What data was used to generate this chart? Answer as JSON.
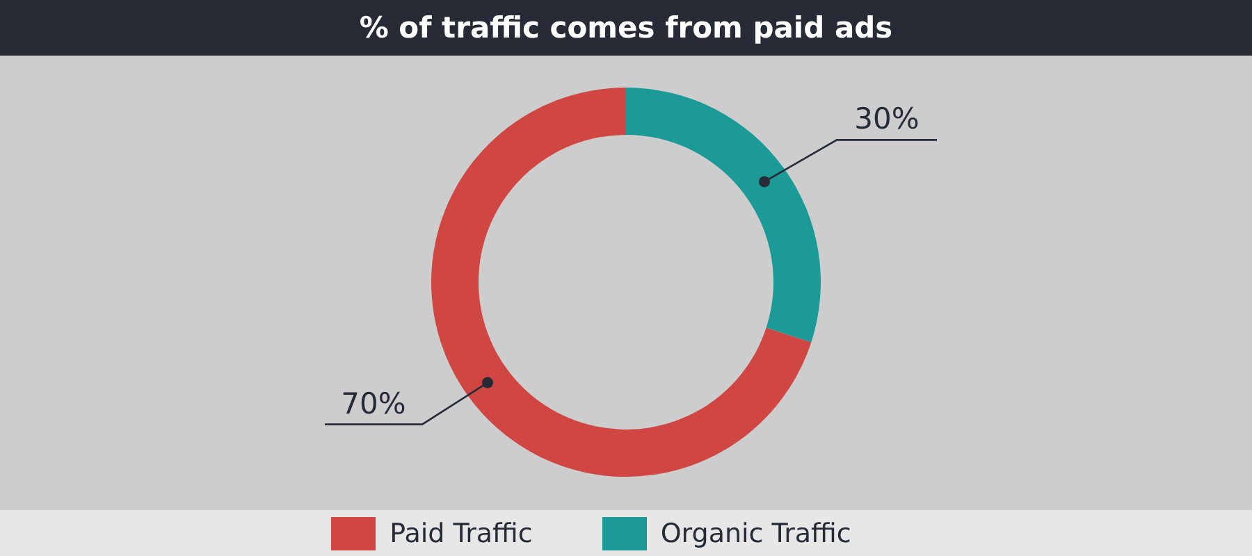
{
  "chart_data": {
    "type": "donut",
    "title": "% of traffic comes from paid ads",
    "categories": [
      "Paid Traffic",
      "Organic Traffic"
    ],
    "values": [
      70,
      30
    ],
    "colors": [
      "#d04643",
      "#1b9a98"
    ],
    "value_labels": [
      "70%",
      "30%"
    ],
    "legend": "bottom"
  }
}
